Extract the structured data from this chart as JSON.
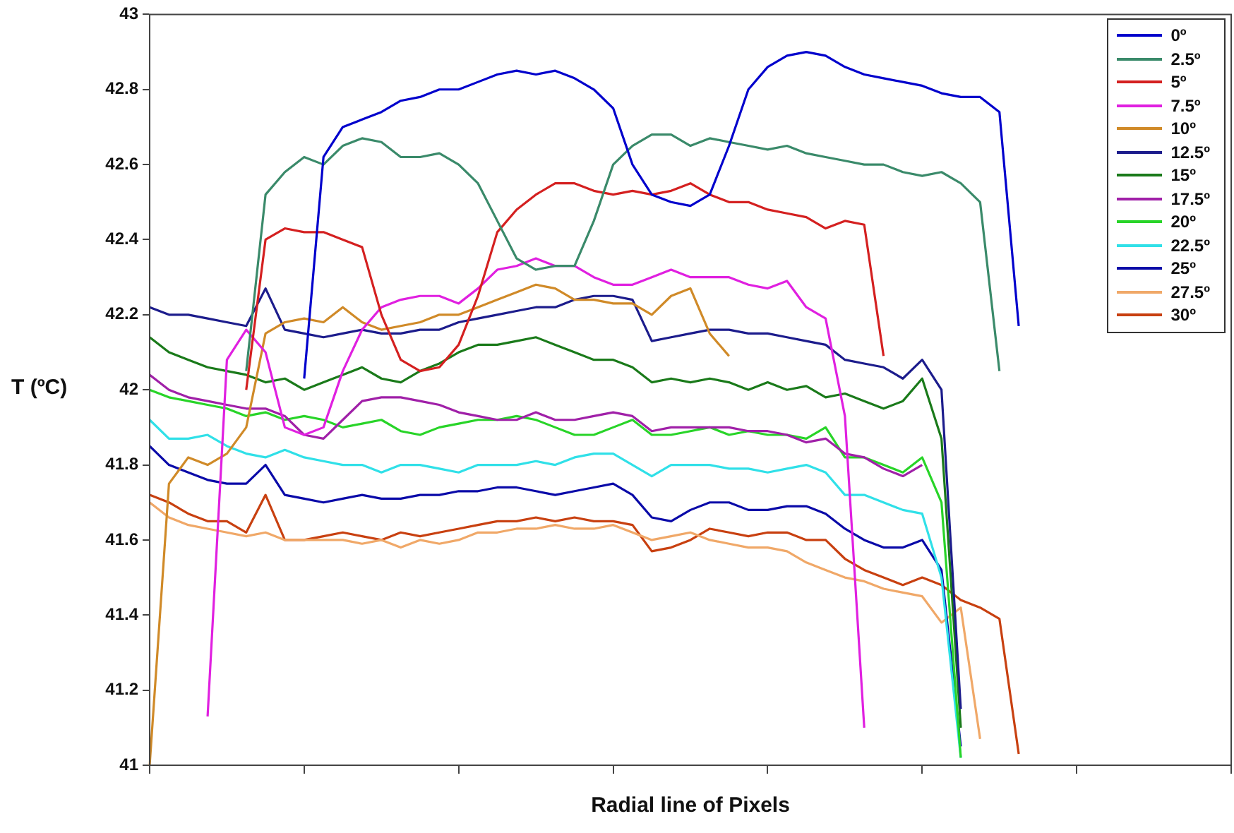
{
  "chart_data": {
    "type": "line",
    "xlabel": "Radial line of Pixels",
    "ylabel": "T (ºC)",
    "categories": [
      null,
      null,
      null,
      null,
      null,
      null,
      null,
      null,
      null,
      null,
      null,
      null,
      null,
      null,
      null,
      null,
      null,
      null,
      null,
      null,
      null,
      null,
      null,
      null,
      null,
      null,
      null,
      null,
      null,
      null,
      null,
      null,
      null,
      null,
      null,
      null,
      null,
      null,
      null,
      null,
      null,
      null,
      null,
      null,
      null,
      null,
      null,
      null,
      null,
      null,
      null,
      null,
      null,
      null,
      null,
      null,
      null
    ],
    "ylim": [
      41,
      43
    ],
    "yticks": [
      41,
      41.2,
      41.4,
      41.6,
      41.8,
      42,
      42.2,
      42.4,
      42.6,
      42.8,
      43
    ],
    "tick_labels": "y",
    "legend": "top right",
    "line_style": "solid",
    "series": [
      {
        "name": "0º",
        "color": "#0000cc",
        "values": [
          null,
          null,
          null,
          null,
          null,
          null,
          null,
          null,
          42.03,
          42.62,
          42.7,
          42.72,
          42.74,
          42.77,
          42.78,
          42.8,
          42.8,
          42.82,
          42.84,
          42.85,
          42.84,
          42.85,
          42.83,
          42.8,
          42.75,
          42.6,
          42.52,
          42.5,
          42.49,
          42.52,
          42.65,
          42.8,
          42.86,
          42.89,
          42.9,
          42.89,
          42.86,
          42.84,
          42.83,
          42.82,
          42.81,
          42.79,
          42.78,
          42.78,
          42.74,
          42.17,
          null,
          null,
          null,
          null,
          null,
          null,
          null,
          null,
          null,
          null,
          null
        ]
      },
      {
        "name": "2.5º",
        "color": "#3a8a6a",
        "values": [
          null,
          null,
          null,
          null,
          null,
          42.05,
          42.52,
          42.58,
          42.62,
          42.6,
          42.65,
          42.67,
          42.66,
          42.62,
          42.62,
          42.63,
          42.6,
          42.55,
          42.45,
          42.35,
          42.32,
          42.33,
          42.33,
          42.45,
          42.6,
          42.65,
          42.68,
          42.68,
          42.65,
          42.67,
          42.66,
          42.65,
          42.64,
          42.65,
          42.63,
          42.62,
          42.61,
          42.6,
          42.6,
          42.58,
          42.57,
          42.58,
          42.55,
          42.5,
          42.05,
          null,
          null,
          null,
          null,
          null,
          null,
          null,
          null,
          null,
          null,
          null,
          null
        ]
      },
      {
        "name": "5º",
        "color": "#d42020",
        "values": [
          null,
          null,
          null,
          null,
          null,
          42.0,
          42.4,
          42.43,
          42.42,
          42.42,
          42.4,
          42.38,
          42.2,
          42.08,
          42.05,
          42.06,
          42.12,
          42.25,
          42.42,
          42.48,
          42.52,
          42.55,
          42.55,
          42.53,
          42.52,
          42.53,
          42.52,
          42.53,
          42.55,
          42.52,
          42.5,
          42.5,
          42.48,
          42.47,
          42.46,
          42.43,
          42.45,
          42.44,
          42.09,
          null,
          null,
          null,
          null,
          null,
          null,
          null,
          null,
          null,
          null,
          null,
          null,
          null,
          null,
          null,
          null,
          null,
          null
        ]
      },
      {
        "name": "7.5º",
        "color": "#e020e0",
        "values": [
          null,
          null,
          null,
          41.13,
          42.08,
          42.16,
          42.1,
          41.9,
          41.88,
          41.9,
          42.05,
          42.16,
          42.22,
          42.24,
          42.25,
          42.25,
          42.23,
          42.27,
          42.32,
          42.33,
          42.35,
          42.33,
          42.33,
          42.3,
          42.28,
          42.28,
          42.3,
          42.32,
          42.3,
          42.3,
          42.3,
          42.28,
          42.27,
          42.29,
          42.22,
          42.19,
          41.93,
          41.1,
          null,
          null,
          null,
          null,
          null,
          null,
          null,
          null,
          null,
          null,
          null,
          null,
          null,
          null,
          null,
          null,
          null,
          null,
          null
        ]
      },
      {
        "name": "10º",
        "color": "#d08a28",
        "values": [
          41.0,
          41.75,
          41.82,
          41.8,
          41.83,
          41.9,
          42.15,
          42.18,
          42.19,
          42.18,
          42.22,
          42.18,
          42.16,
          42.17,
          42.18,
          42.2,
          42.2,
          42.22,
          42.24,
          42.26,
          42.28,
          42.27,
          42.24,
          42.24,
          42.23,
          42.23,
          42.2,
          42.25,
          42.27,
          42.15,
          42.09,
          null,
          null,
          null,
          null,
          null,
          null,
          null,
          null,
          null,
          null,
          null,
          null,
          null,
          null,
          null,
          null,
          null,
          null,
          null,
          null,
          null,
          null,
          null,
          null,
          null,
          null
        ]
      },
      {
        "name": "12.5º",
        "color": "#1c1c8c",
        "values": [
          42.22,
          42.2,
          42.2,
          42.19,
          42.18,
          42.17,
          42.27,
          42.16,
          42.15,
          42.14,
          42.15,
          42.16,
          42.15,
          42.15,
          42.16,
          42.16,
          42.18,
          42.19,
          42.2,
          42.21,
          42.22,
          42.22,
          42.24,
          42.25,
          42.25,
          42.24,
          42.13,
          42.14,
          42.15,
          42.16,
          42.16,
          42.15,
          42.15,
          42.14,
          42.13,
          42.12,
          42.08,
          42.07,
          42.06,
          42.03,
          42.08,
          42.0,
          41.15,
          null,
          null,
          null,
          null,
          null,
          null,
          null,
          null,
          null,
          null,
          null,
          null,
          null,
          null
        ]
      },
      {
        "name": "15º",
        "color": "#1a7a1a",
        "values": [
          42.14,
          42.1,
          42.08,
          42.06,
          42.05,
          42.04,
          42.02,
          42.03,
          42.0,
          42.02,
          42.04,
          42.06,
          42.03,
          42.02,
          42.05,
          42.07,
          42.1,
          42.12,
          42.12,
          42.13,
          42.14,
          42.12,
          42.1,
          42.08,
          42.08,
          42.06,
          42.02,
          42.03,
          42.02,
          42.03,
          42.02,
          42.0,
          42.02,
          42.0,
          42.01,
          41.98,
          41.99,
          41.97,
          41.95,
          41.97,
          42.03,
          41.87,
          41.1,
          null,
          null,
          null,
          null,
          null,
          null,
          null,
          null,
          null,
          null,
          null,
          null,
          null,
          null
        ]
      },
      {
        "name": "17.5º",
        "color": "#a020a8",
        "values": [
          42.04,
          42.0,
          41.98,
          41.97,
          41.96,
          41.95,
          41.95,
          41.93,
          41.88,
          41.87,
          41.92,
          41.97,
          41.98,
          41.98,
          41.97,
          41.96,
          41.94,
          41.93,
          41.92,
          41.92,
          41.94,
          41.92,
          41.92,
          41.93,
          41.94,
          41.93,
          41.89,
          41.9,
          41.9,
          41.9,
          41.9,
          41.89,
          41.89,
          41.88,
          41.86,
          41.87,
          41.83,
          41.82,
          41.79,
          41.77,
          41.8,
          null,
          null,
          null,
          null,
          null,
          null,
          null,
          null,
          null,
          null,
          null,
          null,
          null,
          null,
          null,
          null
        ]
      },
      {
        "name": "20º",
        "color": "#28d428",
        "values": [
          42.0,
          41.98,
          41.97,
          41.96,
          41.95,
          41.93,
          41.94,
          41.92,
          41.93,
          41.92,
          41.9,
          41.91,
          41.92,
          41.89,
          41.88,
          41.9,
          41.91,
          41.92,
          41.92,
          41.93,
          41.92,
          41.9,
          41.88,
          41.88,
          41.9,
          41.92,
          41.88,
          41.88,
          41.89,
          41.9,
          41.88,
          41.89,
          41.88,
          41.88,
          41.87,
          41.9,
          41.82,
          41.82,
          41.8,
          41.78,
          41.82,
          41.7,
          41.02,
          null,
          null,
          null,
          null,
          null,
          null,
          null,
          null,
          null,
          null,
          null,
          null,
          null,
          null
        ]
      },
      {
        "name": "22.5º",
        "color": "#30e0e8",
        "values": [
          41.92,
          41.87,
          41.87,
          41.88,
          41.85,
          41.83,
          41.82,
          41.84,
          41.82,
          41.81,
          41.8,
          41.8,
          41.78,
          41.8,
          41.8,
          41.79,
          41.78,
          41.8,
          41.8,
          41.8,
          41.81,
          41.8,
          41.82,
          41.83,
          41.83,
          41.8,
          41.77,
          41.8,
          41.8,
          41.8,
          41.79,
          41.79,
          41.78,
          41.79,
          41.8,
          41.78,
          41.72,
          41.72,
          41.7,
          41.68,
          41.67,
          41.5,
          41.02,
          null,
          null,
          null,
          null,
          null,
          null,
          null,
          null,
          null,
          null,
          null,
          null,
          null,
          null
        ]
      },
      {
        "name": "25º",
        "color": "#0a0aa8",
        "values": [
          41.85,
          41.8,
          41.78,
          41.76,
          41.75,
          41.75,
          41.8,
          41.72,
          41.71,
          41.7,
          41.71,
          41.72,
          41.71,
          41.71,
          41.72,
          41.72,
          41.73,
          41.73,
          41.74,
          41.74,
          41.73,
          41.72,
          41.73,
          41.74,
          41.75,
          41.72,
          41.66,
          41.65,
          41.68,
          41.7,
          41.7,
          41.68,
          41.68,
          41.69,
          41.69,
          41.67,
          41.63,
          41.6,
          41.58,
          41.58,
          41.6,
          41.52,
          41.05,
          null,
          null,
          null,
          null,
          null,
          null,
          null,
          null,
          null,
          null,
          null,
          null,
          null,
          null
        ]
      },
      {
        "name": "27.5º",
        "color": "#f0a868",
        "values": [
          41.7,
          41.66,
          41.64,
          41.63,
          41.62,
          41.61,
          41.62,
          41.6,
          41.6,
          41.6,
          41.6,
          41.59,
          41.6,
          41.58,
          41.6,
          41.59,
          41.6,
          41.62,
          41.62,
          41.63,
          41.63,
          41.64,
          41.63,
          41.63,
          41.64,
          41.62,
          41.6,
          41.61,
          41.62,
          41.6,
          41.59,
          41.58,
          41.58,
          41.57,
          41.54,
          41.52,
          41.5,
          41.49,
          41.47,
          41.46,
          41.45,
          41.38,
          41.42,
          41.07,
          null,
          null,
          null,
          null,
          null,
          null,
          null,
          null,
          null,
          null,
          null,
          null,
          null
        ]
      },
      {
        "name": "30º",
        "color": "#c84010",
        "values": [
          41.72,
          41.7,
          41.67,
          41.65,
          41.65,
          41.62,
          41.72,
          41.6,
          41.6,
          41.61,
          41.62,
          41.61,
          41.6,
          41.62,
          41.61,
          41.62,
          41.63,
          41.64,
          41.65,
          41.65,
          41.66,
          41.65,
          41.66,
          41.65,
          41.65,
          41.64,
          41.57,
          41.58,
          41.6,
          41.63,
          41.62,
          41.61,
          41.62,
          41.62,
          41.6,
          41.6,
          41.55,
          41.52,
          41.5,
          41.48,
          41.5,
          41.48,
          41.44,
          41.42,
          41.39,
          41.03,
          null,
          null,
          null,
          null,
          null,
          null,
          null,
          null,
          null,
          null,
          null
        ]
      }
    ]
  }
}
